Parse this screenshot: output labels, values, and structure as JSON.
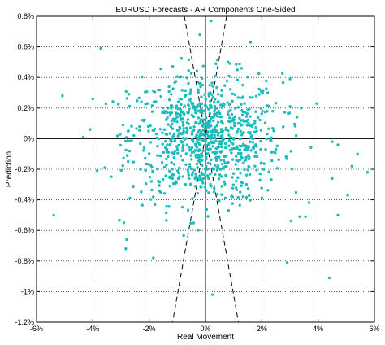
{
  "chart_data": {
    "type": "scatter",
    "title": "EURUSD Forecasts - AR Components One-Sided",
    "xlabel": "Real Movement",
    "ylabel": "Prediction",
    "xlim": [
      -0.06,
      0.06
    ],
    "ylim": [
      -0.012,
      0.008
    ],
    "x_ticks": [
      -0.06,
      -0.04,
      -0.02,
      0,
      0.02,
      0.04,
      0.06
    ],
    "x_tick_labels": [
      "-6%",
      "-4%",
      "-2%",
      "0%",
      "2%",
      "4%",
      "6%"
    ],
    "y_ticks": [
      0.008,
      0.006,
      0.004,
      0.002,
      0,
      -0.002,
      -0.004,
      -0.006,
      -0.008,
      -0.01,
      -0.012
    ],
    "y_tick_labels": [
      "0.8%",
      "0.6%",
      "0.4%",
      "0.2%",
      "0%",
      "-0.2%",
      "-0.4%",
      "-0.6%",
      "-0.8%",
      "-1%",
      "-1.2%"
    ],
    "grid": true,
    "marker_color": "#1dbcbc",
    "zero_lines": true,
    "dashed_lines": [
      {
        "x": [
          -0.0075,
          0.0117
        ],
        "y": [
          0.008,
          -0.012
        ]
      },
      {
        "x": [
          0.0075,
          -0.0117
        ],
        "y": [
          0.008,
          -0.012
        ]
      }
    ],
    "outliers": [
      {
        "x": -0.0539,
        "y": -0.005
      },
      {
        "x": -0.0508,
        "y": 0.0028
      },
      {
        "x": -0.0434,
        "y": 0.0001
      },
      {
        "x": -0.041,
        "y": 0.0006
      },
      {
        "x": -0.04,
        "y": 0.0026
      },
      {
        "x": -0.0385,
        "y": -0.0021
      },
      {
        "x": -0.0372,
        "y": 0.0059
      },
      {
        "x": -0.0283,
        "y": -0.0072
      },
      {
        "x": -0.028,
        "y": -0.0066
      },
      {
        "x": -0.029,
        "y": -0.0055
      },
      {
        "x": -0.0185,
        "y": -0.0078
      },
      {
        "x": 0.016,
        "y": 0.0063
      },
      {
        "x": 0.029,
        "y": -0.0081
      },
      {
        "x": 0.03,
        "y": 0.0039
      },
      {
        "x": 0.034,
        "y": 0.002
      },
      {
        "x": 0.0395,
        "y": 0.0023
      },
      {
        "x": 0.045,
        "y": -0.0026
      },
      {
        "x": 0.044,
        "y": -0.0091
      },
      {
        "x": 0.045,
        "y": -0.0002
      },
      {
        "x": 0.047,
        "y": -0.005
      },
      {
        "x": 0.047,
        "y": -0.0004
      },
      {
        "x": 0.0505,
        "y": -0.0037
      },
      {
        "x": 0.052,
        "y": -0.0018
      },
      {
        "x": 0.054,
        "y": -0.001
      },
      {
        "x": 0.0575,
        "y": -0.0022
      },
      {
        "x": 0.0355,
        "y": -0.0051
      },
      {
        "x": 0.0335,
        "y": -0.0051
      },
      {
        "x": 0.0025,
        "y": -0.0102
      },
      {
        "x": 0.002,
        "y": 0.0077
      },
      {
        "x": -0.002,
        "y": 0.0068
      }
    ],
    "cluster": {
      "count": 900,
      "x_std": 0.0135,
      "y_std": 0.0021,
      "seed": 12345
    }
  }
}
